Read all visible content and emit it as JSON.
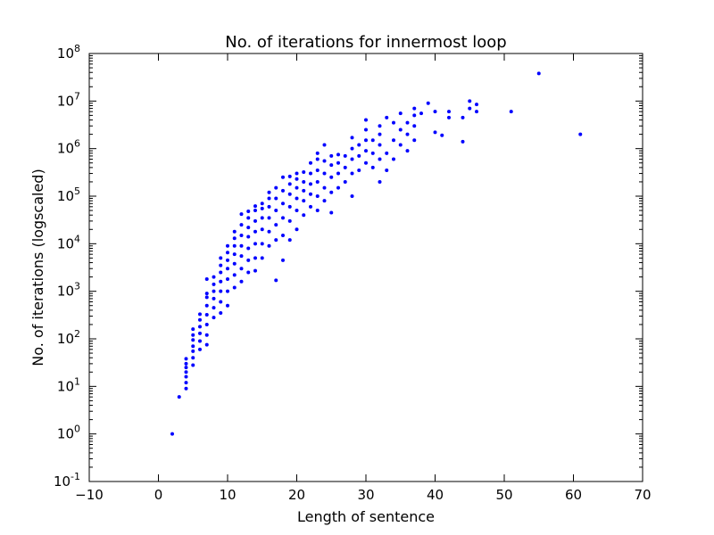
{
  "chart_data": {
    "type": "scatter",
    "title": "No. of iterations for innermost loop",
    "xlabel": "Length of sentence",
    "ylabel": "No. of iterations (logscaled)",
    "xlim": [
      -10,
      70
    ],
    "ylim": [
      0.1,
      100000000
    ],
    "yscale": "log",
    "grid": false,
    "legend": "none",
    "x_ticks": [
      -10,
      0,
      10,
      20,
      30,
      40,
      50,
      60,
      70
    ],
    "x_tick_labels": [
      "−10",
      "0",
      "10",
      "20",
      "30",
      "40",
      "50",
      "60",
      "70"
    ],
    "y_tick_exponents": [
      -1,
      0,
      1,
      2,
      3,
      4,
      5,
      6,
      7,
      8
    ],
    "marker_color": "#0000ff",
    "points": [
      [
        2,
        1
      ],
      [
        3,
        6
      ],
      [
        4,
        9
      ],
      [
        4,
        12
      ],
      [
        4,
        16
      ],
      [
        4,
        20
      ],
      [
        4,
        25
      ],
      [
        4,
        30
      ],
      [
        4,
        38
      ],
      [
        5,
        28
      ],
      [
        5,
        40
      ],
      [
        5,
        55
      ],
      [
        5,
        70
      ],
      [
        5,
        95
      ],
      [
        5,
        120
      ],
      [
        5,
        160
      ],
      [
        6,
        60
      ],
      [
        6,
        90
      ],
      [
        6,
        130
      ],
      [
        6,
        180
      ],
      [
        6,
        250
      ],
      [
        6,
        330
      ],
      [
        7,
        75
      ],
      [
        7,
        120
      ],
      [
        7,
        200
      ],
      [
        7,
        320
      ],
      [
        7,
        500
      ],
      [
        7,
        750
      ],
      [
        7,
        900
      ],
      [
        7,
        1800
      ],
      [
        8,
        280
      ],
      [
        8,
        450
      ],
      [
        8,
        700
      ],
      [
        8,
        1000
      ],
      [
        8,
        1400
      ],
      [
        8,
        2000
      ],
      [
        9,
        350
      ],
      [
        9,
        600
      ],
      [
        9,
        1000
      ],
      [
        9,
        1600
      ],
      [
        9,
        2500
      ],
      [
        9,
        3500
      ],
      [
        9,
        5000
      ],
      [
        10,
        500
      ],
      [
        10,
        1000
      ],
      [
        10,
        1800
      ],
      [
        10,
        3000
      ],
      [
        10,
        4500
      ],
      [
        10,
        6500
      ],
      [
        10,
        9000
      ],
      [
        11,
        1200
      ],
      [
        11,
        2200
      ],
      [
        11,
        3800
      ],
      [
        11,
        6000
      ],
      [
        11,
        9000
      ],
      [
        11,
        13000
      ],
      [
        11,
        18000
      ],
      [
        12,
        1600
      ],
      [
        12,
        3000
      ],
      [
        12,
        5500
      ],
      [
        12,
        9000
      ],
      [
        12,
        15000
      ],
      [
        12,
        25000
      ],
      [
        12,
        42000
      ],
      [
        13,
        2500
      ],
      [
        13,
        4500
      ],
      [
        13,
        8000
      ],
      [
        13,
        14000
      ],
      [
        13,
        22000
      ],
      [
        13,
        35000
      ],
      [
        13,
        48000
      ],
      [
        14,
        2700
      ],
      [
        14,
        5000
      ],
      [
        14,
        10000
      ],
      [
        14,
        18000
      ],
      [
        14,
        30000
      ],
      [
        14,
        50000
      ],
      [
        14,
        62000
      ],
      [
        15,
        5000
      ],
      [
        15,
        10000
      ],
      [
        15,
        20000
      ],
      [
        15,
        35000
      ],
      [
        15,
        55000
      ],
      [
        15,
        70000
      ],
      [
        16,
        9000
      ],
      [
        16,
        18000
      ],
      [
        16,
        35000
      ],
      [
        16,
        60000
      ],
      [
        16,
        90000
      ],
      [
        16,
        120000
      ],
      [
        17,
        1700
      ],
      [
        17,
        12000
      ],
      [
        17,
        25000
      ],
      [
        17,
        50000
      ],
      [
        17,
        90000
      ],
      [
        17,
        150000
      ],
      [
        18,
        4500
      ],
      [
        18,
        15000
      ],
      [
        18,
        35000
      ],
      [
        18,
        70000
      ],
      [
        18,
        130000
      ],
      [
        18,
        250000
      ],
      [
        19,
        12000
      ],
      [
        19,
        30000
      ],
      [
        19,
        60000
      ],
      [
        19,
        110000
      ],
      [
        19,
        180000
      ],
      [
        19,
        260000
      ],
      [
        20,
        20000
      ],
      [
        20,
        50000
      ],
      [
        20,
        90000
      ],
      [
        20,
        150000
      ],
      [
        20,
        230000
      ],
      [
        20,
        300000
      ],
      [
        21,
        40000
      ],
      [
        21,
        80000
      ],
      [
        21,
        130000
      ],
      [
        21,
        200000
      ],
      [
        21,
        320000
      ],
      [
        22,
        60000
      ],
      [
        22,
        110000
      ],
      [
        22,
        180000
      ],
      [
        22,
        300000
      ],
      [
        22,
        500000
      ],
      [
        23,
        50000
      ],
      [
        23,
        100000
      ],
      [
        23,
        200000
      ],
      [
        23,
        350000
      ],
      [
        23,
        600000
      ],
      [
        23,
        800000
      ],
      [
        24,
        80000
      ],
      [
        24,
        150000
      ],
      [
        24,
        300000
      ],
      [
        24,
        550000
      ],
      [
        24,
        1200000
      ],
      [
        25,
        45000
      ],
      [
        25,
        120000
      ],
      [
        25,
        250000
      ],
      [
        25,
        450000
      ],
      [
        25,
        700000
      ],
      [
        26,
        150000
      ],
      [
        26,
        300000
      ],
      [
        26,
        500000
      ],
      [
        26,
        750000
      ],
      [
        27,
        200000
      ],
      [
        27,
        400000
      ],
      [
        27,
        700000
      ],
      [
        28,
        100000
      ],
      [
        28,
        300000
      ],
      [
        28,
        600000
      ],
      [
        28,
        1000000
      ],
      [
        28,
        1700000
      ],
      [
        29,
        350000
      ],
      [
        29,
        700000
      ],
      [
        29,
        1200000
      ],
      [
        30,
        500000
      ],
      [
        30,
        900000
      ],
      [
        30,
        1500000
      ],
      [
        30,
        2500000
      ],
      [
        30,
        4000000
      ],
      [
        31,
        400000
      ],
      [
        31,
        800000
      ],
      [
        31,
        1500000
      ],
      [
        32,
        200000
      ],
      [
        32,
        600000
      ],
      [
        32,
        1200000
      ],
      [
        32,
        2000000
      ],
      [
        32,
        3000000
      ],
      [
        33,
        350000
      ],
      [
        33,
        800000
      ],
      [
        33,
        4500000
      ],
      [
        34,
        600000
      ],
      [
        34,
        1500000
      ],
      [
        34,
        3500000
      ],
      [
        35,
        1200000
      ],
      [
        35,
        2500000
      ],
      [
        35,
        5500000
      ],
      [
        36,
        900000
      ],
      [
        36,
        2000000
      ],
      [
        36,
        3500000
      ],
      [
        37,
        1500000
      ],
      [
        37,
        3000000
      ],
      [
        37,
        5000000
      ],
      [
        37,
        7000000
      ],
      [
        38,
        5500000
      ],
      [
        39,
        9000000
      ],
      [
        40,
        2200000
      ],
      [
        40,
        6000000
      ],
      [
        41,
        1900000
      ],
      [
        42,
        4500000
      ],
      [
        42,
        6000000
      ],
      [
        44,
        1400000
      ],
      [
        44,
        4500000
      ],
      [
        45,
        7000000
      ],
      [
        45,
        10000000
      ],
      [
        46,
        6000000
      ],
      [
        46,
        8500000
      ],
      [
        51,
        6000000
      ],
      [
        55,
        38000000
      ],
      [
        61,
        2000000
      ]
    ]
  }
}
